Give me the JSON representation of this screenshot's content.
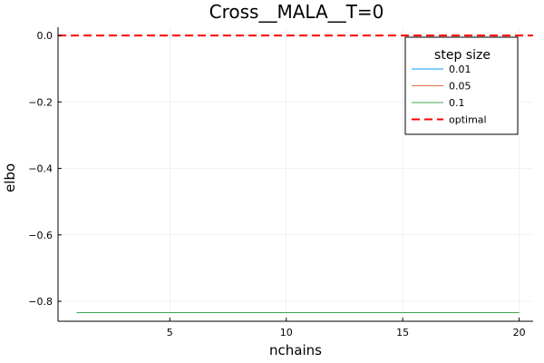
{
  "chart_data": {
    "type": "line",
    "title": "Cross__MALA__T=0",
    "xlabel": "nchains",
    "ylabel": "elbo",
    "xlim": [
      0.2,
      20.6
    ],
    "ylim": [
      -0.86,
      0.025
    ],
    "x_ticks": [
      5,
      10,
      15,
      20
    ],
    "x_tick_labels": [
      "5",
      "10",
      "15",
      "20"
    ],
    "y_ticks": [
      0.0,
      -0.2,
      -0.4,
      -0.6,
      -0.8
    ],
    "y_tick_labels": [
      "0.0",
      "−0.2",
      "−0.4",
      "−0.6",
      "−0.8"
    ],
    "grid": true,
    "legend": {
      "title": "step size",
      "placement": "top-right",
      "entries": [
        "0.01",
        "0.05",
        "0.1",
        "optimal"
      ]
    },
    "series": [
      {
        "name": "0.01",
        "color": "#009AFA",
        "x": [
          1,
          20
        ],
        "y": [
          -0.834,
          -0.834
        ]
      },
      {
        "name": "0.05",
        "color": "#E26F46",
        "x": [
          1,
          20
        ],
        "y": [
          -0.834,
          -0.834
        ]
      },
      {
        "name": "0.1",
        "color": "#3DA44D",
        "x": [
          1,
          20
        ],
        "y": [
          -0.834,
          -0.834
        ]
      }
    ],
    "hline": {
      "name": "optimal",
      "color": "#FF0000",
      "y": 0.0,
      "dashed": true
    }
  }
}
